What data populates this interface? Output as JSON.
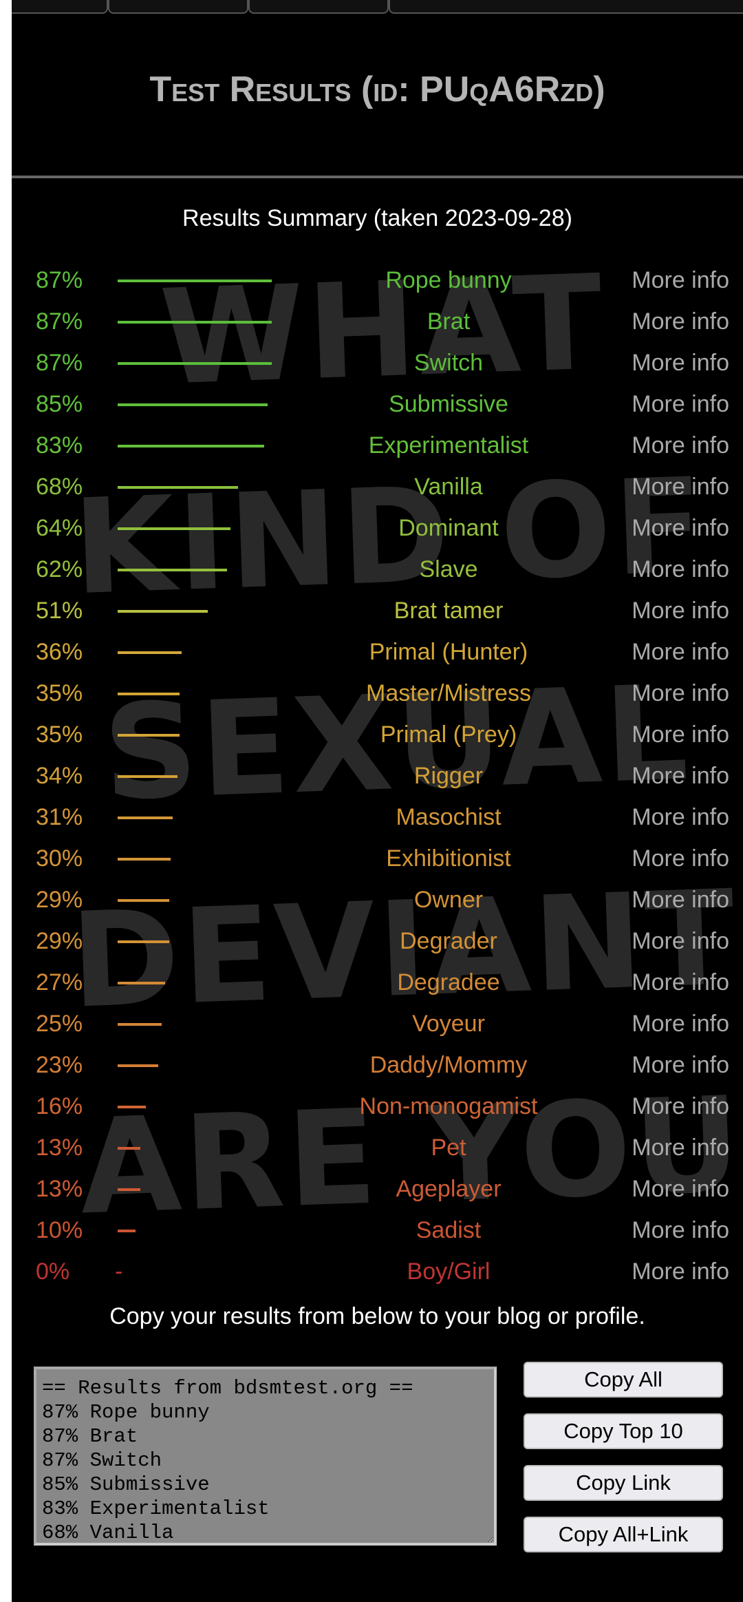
{
  "background_lettering": "WHAT KIND OF SEXUAL DEVIANT ARE YOU",
  "header": {
    "title": "Test Results (id: PUqA6Rzd)"
  },
  "summary": {
    "heading": "Results Summary (taken 2023-09-28)"
  },
  "more_info_label": "More info",
  "results": [
    {
      "pct": "87%",
      "value": 87,
      "name": "Rope bunny",
      "color": "#5cbf3a"
    },
    {
      "pct": "87%",
      "value": 87,
      "name": "Brat",
      "color": "#5cbf3a"
    },
    {
      "pct": "87%",
      "value": 87,
      "name": "Switch",
      "color": "#5cbf3a"
    },
    {
      "pct": "85%",
      "value": 85,
      "name": "Submissive",
      "color": "#60c03a"
    },
    {
      "pct": "83%",
      "value": 83,
      "name": "Experimentalist",
      "color": "#66c03a"
    },
    {
      "pct": "68%",
      "value": 68,
      "name": "Vanilla",
      "color": "#88c03c"
    },
    {
      "pct": "64%",
      "value": 64,
      "name": "Dominant",
      "color": "#90c03c"
    },
    {
      "pct": "62%",
      "value": 62,
      "name": "Slave",
      "color": "#96c03c"
    },
    {
      "pct": "51%",
      "value": 51,
      "name": "Brat tamer",
      "color": "#b8c040"
    },
    {
      "pct": "36%",
      "value": 36,
      "name": "Primal (Hunter)",
      "color": "#d4a838"
    },
    {
      "pct": "35%",
      "value": 35,
      "name": "Master/Mistress",
      "color": "#d4a436"
    },
    {
      "pct": "35%",
      "value": 35,
      "name": "Primal (Prey)",
      "color": "#d4a436"
    },
    {
      "pct": "34%",
      "value": 34,
      "name": "Rigger",
      "color": "#d4a036"
    },
    {
      "pct": "31%",
      "value": 31,
      "name": "Masochist",
      "color": "#d49836"
    },
    {
      "pct": "30%",
      "value": 30,
      "name": "Exhibitionist",
      "color": "#d49636"
    },
    {
      "pct": "29%",
      "value": 29,
      "name": "Owner",
      "color": "#d49236"
    },
    {
      "pct": "29%",
      "value": 29,
      "name": "Degrader",
      "color": "#d49236"
    },
    {
      "pct": "27%",
      "value": 27,
      "name": "Degradee",
      "color": "#d48c36"
    },
    {
      "pct": "25%",
      "value": 25,
      "name": "Voyeur",
      "color": "#d48636"
    },
    {
      "pct": "23%",
      "value": 23,
      "name": "Daddy/Mommy",
      "color": "#d47e36"
    },
    {
      "pct": "16%",
      "value": 16,
      "name": "Non-monogamist",
      "color": "#d06434"
    },
    {
      "pct": "13%",
      "value": 13,
      "name": "Pet",
      "color": "#ce5c34"
    },
    {
      "pct": "13%",
      "value": 13,
      "name": "Ageplayer",
      "color": "#ce5c34"
    },
    {
      "pct": "10%",
      "value": 10,
      "name": "Sadist",
      "color": "#cc5432"
    },
    {
      "pct": "0%",
      "value": 0,
      "name": "Boy/Girl",
      "color": "#c03434",
      "bar_text": "-"
    }
  ],
  "copy_section": {
    "instruction": "Copy your results from below to your blog or profile.",
    "textarea_value": "== Results from bdsmtest.org ==\n87% Rope bunny\n87% Brat\n87% Switch\n85% Submissive\n83% Experimentalist\n68% Vanilla",
    "buttons": [
      "Copy All",
      "Copy Top 10",
      "Copy Link",
      "Copy All+Link"
    ]
  }
}
